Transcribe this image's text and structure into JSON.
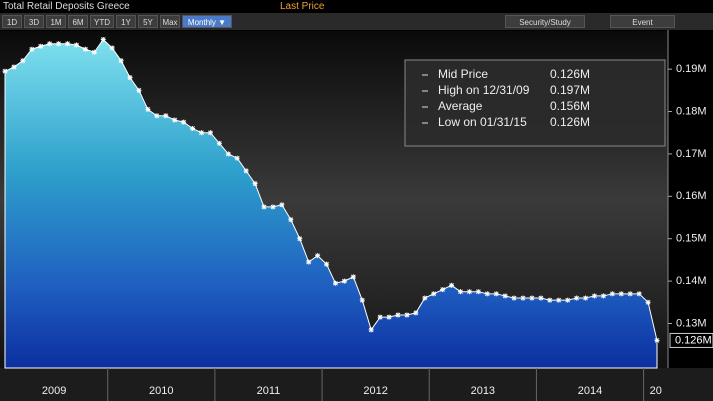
{
  "header": {
    "title": "Total Retail Deposits Greece",
    "price_field": "Last Price",
    "buttons": [
      "1D",
      "3D",
      "1M",
      "6M",
      "YTD",
      "1Y",
      "5Y",
      "Max"
    ],
    "frequency": "Monthly ▼",
    "tools": [
      "Security/Study",
      "Event"
    ]
  },
  "chart_data": {
    "type": "area",
    "values": [
      0.1895,
      0.1905,
      0.192,
      0.1947,
      0.1954,
      0.196,
      0.196,
      0.196,
      0.1957,
      0.1947,
      0.194,
      0.197,
      0.195,
      0.192,
      0.188,
      0.185,
      0.1805,
      0.179,
      0.179,
      0.178,
      0.1775,
      0.176,
      0.175,
      0.175,
      0.1725,
      0.17,
      0.169,
      0.166,
      0.163,
      0.1575,
      0.1575,
      0.158,
      0.1545,
      0.15,
      0.1445,
      0.146,
      0.144,
      0.1395,
      0.14,
      0.141,
      0.1355,
      0.1285,
      0.1315,
      0.1315,
      0.132,
      0.132,
      0.1325,
      0.136,
      0.137,
      0.138,
      0.139,
      0.1375,
      0.1375,
      0.1375,
      0.137,
      0.137,
      0.1365,
      0.136,
      0.136,
      0.136,
      0.136,
      0.1355,
      0.1355,
      0.1355,
      0.136,
      0.136,
      0.1365,
      0.1365,
      0.137,
      0.137,
      0.137,
      0.137,
      0.135,
      0.126
    ],
    "x_labels": [
      "2009",
      "2010",
      "2011",
      "2012",
      "2013",
      "2014",
      "20"
    ],
    "ylim": [
      0.1195,
      0.199
    ],
    "yticks": [
      {
        "value": 0.13,
        "label": "0.13M"
      },
      {
        "value": 0.14,
        "label": "0.14M"
      },
      {
        "value": 0.15,
        "label": "0.15M"
      },
      {
        "value": 0.16,
        "label": "0.16M"
      },
      {
        "value": 0.17,
        "label": "0.17M"
      },
      {
        "value": 0.18,
        "label": "0.18M"
      },
      {
        "value": 0.19,
        "label": "0.19M"
      }
    ],
    "last_label": "0.126M",
    "legend": {
      "labels": [
        "Mid Price",
        "High on 12/31/09",
        "Average",
        "Low on 01/31/15"
      ],
      "value_labels": [
        "0.126M",
        "0.197M",
        "0.156M",
        "0.126M"
      ]
    },
    "grid": false
  }
}
